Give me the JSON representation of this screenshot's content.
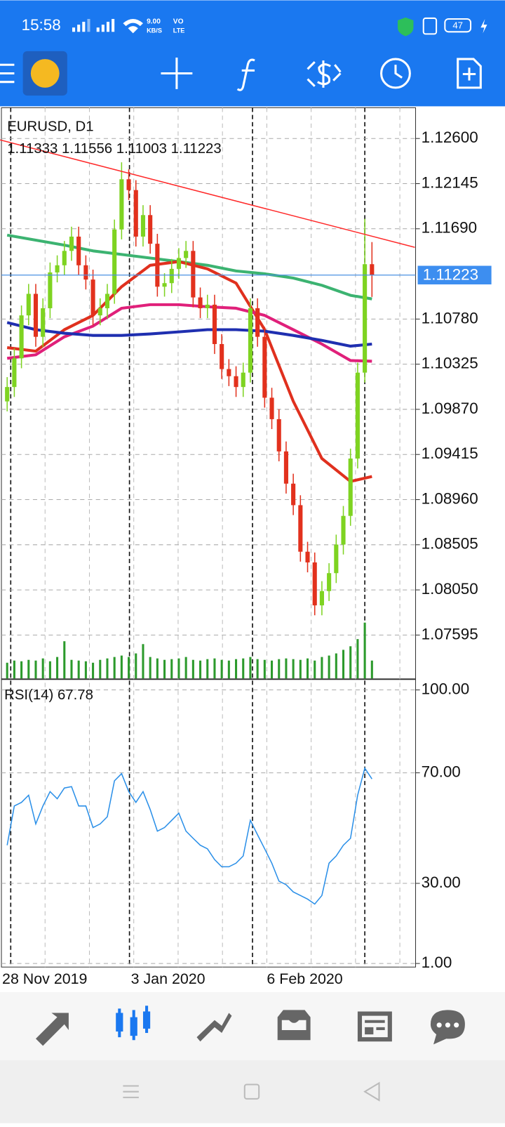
{
  "status_bar": {
    "time": "15:58",
    "speed": "9.00",
    "speed_unit": "KB/S",
    "network_top": "VO",
    "network_bottom": "LTE",
    "battery": "47"
  },
  "chart_data": {
    "type": "candlestick",
    "title": "EURUSD, D1",
    "ohlc_label": "1.11333 1.11556 1.11003 1.11223",
    "categories": [
      "28 Nov 2019",
      null,
      null,
      null,
      null,
      null,
      null,
      null,
      null,
      null,
      null,
      null,
      null,
      null,
      null,
      null,
      null,
      null,
      "3 Jan 2020",
      null,
      null,
      null,
      null,
      null,
      null,
      null,
      null,
      null,
      null,
      null,
      null,
      null,
      null,
      null,
      null,
      null,
      null,
      "6 Feb 2020",
      null,
      null,
      null,
      null,
      null,
      null,
      null,
      null,
      null,
      null,
      null,
      null,
      null,
      null
    ],
    "open": [
      1.0995,
      1.10095,
      1.10384,
      1.10817,
      1.11034,
      1.10601,
      1.10889,
      1.1125,
      1.11322,
      1.11467,
      1.11611,
      1.11322,
      1.11178,
      1.10817,
      1.10889,
      1.11034,
      1.11683,
      1.12189,
      1.1208,
      1.11611,
      1.11828,
      1.11539,
      1.11106,
      1.11142,
      1.11286,
      1.11395,
      1.11467,
      1.10998,
      1.10889,
      1.10925,
      1.10528,
      1.10276,
      1.10204,
      1.10095,
      1.1024,
      1.10889,
      1.10601,
      1.09987,
      1.09771,
      1.09446,
      1.09121,
      1.08904,
      1.08435,
      1.08327,
      1.07894,
      1.08038,
      1.08219,
      1.08507,
      1.08796,
      1.09374,
      1.1024,
      1.11333
    ],
    "high": [
      1.10195,
      1.10484,
      1.10917,
      1.11134,
      1.11134,
      1.10989,
      1.1135,
      1.11422,
      1.11567,
      1.11711,
      1.11711,
      1.11422,
      1.11278,
      1.10989,
      1.11134,
      1.11783,
      1.1236,
      1.12289,
      1.1218,
      1.11928,
      1.11928,
      1.11639,
      1.11242,
      1.11386,
      1.11495,
      1.11567,
      1.11567,
      1.11098,
      1.11025,
      1.11025,
      1.10628,
      1.10376,
      1.10304,
      1.1034,
      1.10989,
      1.10989,
      1.10701,
      1.10087,
      1.09871,
      1.09546,
      1.09221,
      1.09004,
      1.08535,
      1.08427,
      1.08138,
      1.08319,
      1.08607,
      1.08896,
      1.09474,
      1.1034,
      1.1179,
      1.11556
    ],
    "low": [
      1.0985,
      1.09995,
      1.10284,
      1.10717,
      1.10501,
      1.10501,
      1.10789,
      1.1115,
      1.11222,
      1.11367,
      1.11222,
      1.11078,
      1.10717,
      1.10717,
      1.10789,
      1.10934,
      1.11583,
      1.1198,
      1.11511,
      1.11511,
      1.11439,
      1.11006,
      1.11006,
      1.11042,
      1.11186,
      1.11295,
      1.10898,
      1.10789,
      1.10789,
      1.10428,
      1.10176,
      1.10104,
      1.09995,
      1.09995,
      1.1014,
      1.10501,
      1.09887,
      1.09671,
      1.09346,
      1.09021,
      1.08804,
      1.08335,
      1.08227,
      1.07794,
      1.07794,
      1.07938,
      1.08119,
      1.08407,
      1.08696,
      1.09274,
      1.1014,
      1.11003
    ],
    "close": [
      1.10095,
      1.10384,
      1.10817,
      1.11034,
      1.10601,
      1.10889,
      1.1125,
      1.11322,
      1.11467,
      1.11611,
      1.11322,
      1.11178,
      1.10817,
      1.10889,
      1.11034,
      1.11683,
      1.12189,
      1.1208,
      1.11611,
      1.11828,
      1.11539,
      1.11106,
      1.11142,
      1.11286,
      1.11395,
      1.11467,
      1.10998,
      1.10889,
      1.10925,
      1.10528,
      1.10276,
      1.10204,
      1.10095,
      1.1024,
      1.10889,
      1.10601,
      1.09987,
      1.09771,
      1.09446,
      1.09121,
      1.08904,
      1.08435,
      1.08327,
      1.07894,
      1.08038,
      1.08219,
      1.08507,
      1.08796,
      1.09374,
      1.1024,
      1.11333,
      1.11223
    ],
    "volume": [
      22,
      25,
      24,
      26,
      25,
      28,
      24,
      30,
      52,
      26,
      25,
      24,
      22,
      26,
      28,
      30,
      32,
      30,
      35,
      48,
      30,
      28,
      26,
      27,
      28,
      30,
      26,
      25,
      27,
      28,
      26,
      25,
      27,
      28,
      30,
      27,
      26,
      25,
      27,
      28,
      27,
      26,
      28,
      25,
      30,
      32,
      35,
      40,
      45,
      55,
      78,
      25
    ],
    "up_color": "#7ed321",
    "down_color": "#e2311d",
    "volume_color": "#2c9a2c",
    "moving_averages": [
      {
        "color": "#3cb371",
        "index": [
          0,
          4,
          8,
          12,
          16,
          20,
          24,
          28,
          32,
          36,
          40,
          44,
          48,
          51
        ],
        "values": [
          1.11626,
          1.11575,
          1.11525,
          1.11467,
          1.11431,
          1.11395,
          1.11359,
          1.11322,
          1.11265,
          1.11236,
          1.11193,
          1.1112,
          1.11019,
          1.10983
        ]
      },
      {
        "color": "#e0301e",
        "index": [
          0,
          4,
          8,
          12,
          16,
          20,
          24,
          28,
          32,
          36,
          40,
          44,
          48,
          51
        ],
        "values": [
          1.10492,
          1.10456,
          1.10673,
          1.10817,
          1.11106,
          1.11322,
          1.11359,
          1.11286,
          1.11142,
          1.10673,
          1.09951,
          1.09374,
          1.09143,
          1.09193
        ]
      },
      {
        "color": "#e0207a",
        "index": [
          0,
          4,
          8,
          12,
          16,
          20,
          24,
          28,
          32,
          36,
          40,
          44,
          48,
          51
        ],
        "values": [
          1.10384,
          1.1042,
          1.10601,
          1.10709,
          1.10889,
          1.10925,
          1.10925,
          1.10904,
          1.10889,
          1.10817,
          1.10673,
          1.10528,
          1.10362,
          1.10355
        ]
      },
      {
        "color": "#1f2fb0",
        "index": [
          0,
          4,
          8,
          12,
          16,
          20,
          24,
          28,
          32,
          36,
          40,
          44,
          48,
          51
        ],
        "values": [
          1.10745,
          1.10673,
          1.10637,
          1.10615,
          1.10615,
          1.1063,
          1.10651,
          1.10673,
          1.10673,
          1.10658,
          1.10615,
          1.10565,
          1.10507,
          1.10528
        ]
      }
    ],
    "trendline": {
      "color": "#ff2a2a",
      "index": [
        -1,
        57
      ],
      "values": [
        1.12586,
        1.11503
      ]
    },
    "bid": {
      "value": 1.11223,
      "label": "1.11223"
    },
    "ylim": [
      1.0715,
      1.1291
    ],
    "yticks": [
      {
        "value": 1.126,
        "label": "1.12600"
      },
      {
        "value": 1.12145,
        "label": "1.12145"
      },
      {
        "value": 1.1169,
        "label": "1.11690"
      },
      {
        "value": 1.1078,
        "label": "1.10780"
      },
      {
        "value": 1.10325,
        "label": "1.10325"
      },
      {
        "value": 1.0987,
        "label": "1.09870"
      },
      {
        "value": 1.09415,
        "label": "1.09415"
      },
      {
        "value": 1.0896,
        "label": "1.08960"
      },
      {
        "value": 1.08505,
        "label": "1.08505"
      },
      {
        "value": 1.0805,
        "label": "1.08050"
      },
      {
        "value": 1.07595,
        "label": "1.07595"
      }
    ],
    "grid": true,
    "rsi": {
      "label": "RSI(14) 67.78",
      "color": "#2a8fe8",
      "values": [
        43.8,
        58,
        59.3,
        61.9,
        51.5,
        58,
        63.2,
        60.6,
        64.5,
        65,
        58,
        58,
        50.2,
        51.5,
        54.1,
        67.1,
        69.7,
        63.2,
        59.3,
        63.2,
        56.7,
        48.9,
        50.2,
        52.8,
        55.4,
        48.9,
        46.3,
        43.8,
        42.5,
        38.6,
        36,
        36,
        37.3,
        39.9,
        52.8,
        47.6,
        42.5,
        37.3,
        30.8,
        29.5,
        26.9,
        25.6,
        24.3,
        22.5,
        25.6,
        37.3,
        39.9,
        43.8,
        46.3,
        61.9,
        71.7,
        67.78
      ],
      "ylim": [
        1,
        100
      ],
      "yticks": [
        {
          "value": 100,
          "label": "100.00"
        },
        {
          "value": 70,
          "label": "70.00"
        },
        {
          "value": 30,
          "label": "30.00"
        },
        {
          "value": 1,
          "label": "1.00"
        }
      ]
    }
  }
}
